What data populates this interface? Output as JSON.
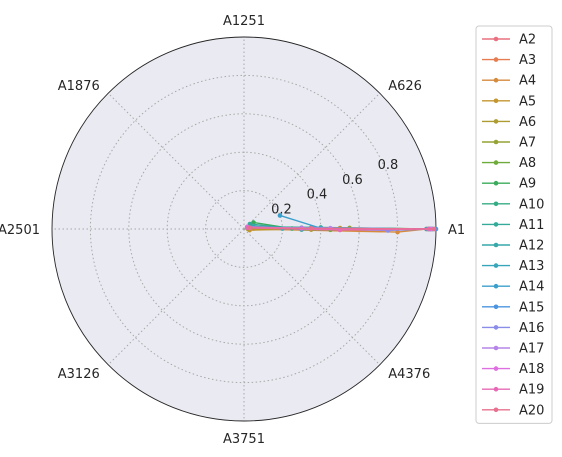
{
  "chart_data": {
    "type": "line",
    "projection": "polar",
    "angular_axis": {
      "labels": [
        "A1",
        "A626",
        "A1251",
        "A1876",
        "A2501",
        "A3126",
        "A3751",
        "A4376"
      ],
      "start_direction": "east",
      "direction": "counter-clockwise"
    },
    "radial_axis": {
      "range": [
        0,
        1.0
      ],
      "ticks": [
        0.2,
        0.4,
        0.6,
        0.8
      ],
      "tick_labels": [
        "0.2",
        "0.4",
        "0.6",
        "0.8"
      ]
    },
    "grid": true,
    "legend_position": "right-outside",
    "series": [
      {
        "name": "A2",
        "color": "#e8707f",
        "points": [
          [
            0,
            0.98
          ],
          [
            0.02,
            0.3
          ],
          [
            0.05,
            0.05
          ]
        ]
      },
      {
        "name": "A3",
        "color": "#e67c50",
        "points": [
          [
            0,
            0.96
          ],
          [
            -0.01,
            0.6
          ],
          [
            0.3,
            0.03
          ]
        ]
      },
      {
        "name": "A4",
        "color": "#d68a3c",
        "points": [
          [
            0,
            0.95
          ],
          [
            -0.02,
            0.8
          ],
          [
            0.02,
            0.02
          ]
        ]
      },
      {
        "name": "A5",
        "color": "#c4962f",
        "points": [
          [
            0,
            0.97
          ],
          [
            0.01,
            0.5
          ],
          [
            -0.2,
            0.03
          ]
        ]
      },
      {
        "name": "A6",
        "color": "#ad9c30",
        "points": [
          [
            0,
            0.96
          ],
          [
            -0.01,
            0.35
          ],
          [
            0.1,
            0.02
          ]
        ]
      },
      {
        "name": "A7",
        "color": "#96a233",
        "points": [
          [
            0,
            0.97
          ],
          [
            0.01,
            0.55
          ],
          [
            0.2,
            0.02
          ]
        ]
      },
      {
        "name": "A8",
        "color": "#6fab3a",
        "points": [
          [
            0,
            0.98
          ],
          [
            -0.01,
            0.45
          ],
          [
            0.5,
            0.02
          ]
        ]
      },
      {
        "name": "A9",
        "color": "#3aab5a",
        "points": [
          [
            0,
            0.99
          ],
          [
            0.01,
            0.25
          ],
          [
            0.6,
            0.06
          ]
        ]
      },
      {
        "name": "A10",
        "color": "#34ac85",
        "points": [
          [
            0,
            0.97
          ],
          [
            0.02,
            0.4
          ],
          [
            0.4,
            0.03
          ]
        ]
      },
      {
        "name": "A11",
        "color": "#35aa99",
        "points": [
          [
            0,
            0.98
          ],
          [
            -0.01,
            0.3
          ],
          [
            0.7,
            0.04
          ]
        ]
      },
      {
        "name": "A12",
        "color": "#36a8a9",
        "points": [
          [
            0,
            0.96
          ],
          [
            0.01,
            0.2
          ],
          [
            0.3,
            0.05
          ]
        ]
      },
      {
        "name": "A13",
        "color": "#38a6ba",
        "points": [
          [
            0,
            0.95
          ],
          [
            0.02,
            0.35
          ],
          [
            0.4,
            0.02
          ]
        ]
      },
      {
        "name": "A14",
        "color": "#3b9fcc",
        "points": [
          [
            0,
            0.97
          ],
          [
            0.01,
            0.4
          ],
          [
            0.36,
            0.2
          ]
        ]
      },
      {
        "name": "A15",
        "color": "#4b94e0",
        "points": [
          [
            0,
            1.0
          ],
          [
            0.02,
            0.3
          ],
          [
            0.5,
            0.02
          ]
        ]
      },
      {
        "name": "A16",
        "color": "#8a8de8",
        "points": [
          [
            0,
            0.97
          ],
          [
            -0.01,
            0.75
          ],
          [
            0.2,
            0.03
          ]
        ]
      },
      {
        "name": "A17",
        "color": "#b586e8",
        "points": [
          [
            0,
            0.98
          ],
          [
            0.01,
            0.45
          ],
          [
            0.4,
            0.02
          ]
        ]
      },
      {
        "name": "A18",
        "color": "#dd6fe0",
        "points": [
          [
            0,
            0.97
          ],
          [
            0.01,
            0.3
          ],
          [
            0.6,
            0.02
          ]
        ]
      },
      {
        "name": "A19",
        "color": "#e768b4",
        "points": [
          [
            0,
            0.96
          ],
          [
            -0.01,
            0.5
          ],
          [
            0.3,
            0.02
          ]
        ]
      },
      {
        "name": "A20",
        "color": "#e8708e",
        "points": [
          [
            0,
            0.99
          ],
          [
            0.01,
            0.35
          ],
          [
            0.2,
            0.03
          ]
        ]
      }
    ]
  }
}
